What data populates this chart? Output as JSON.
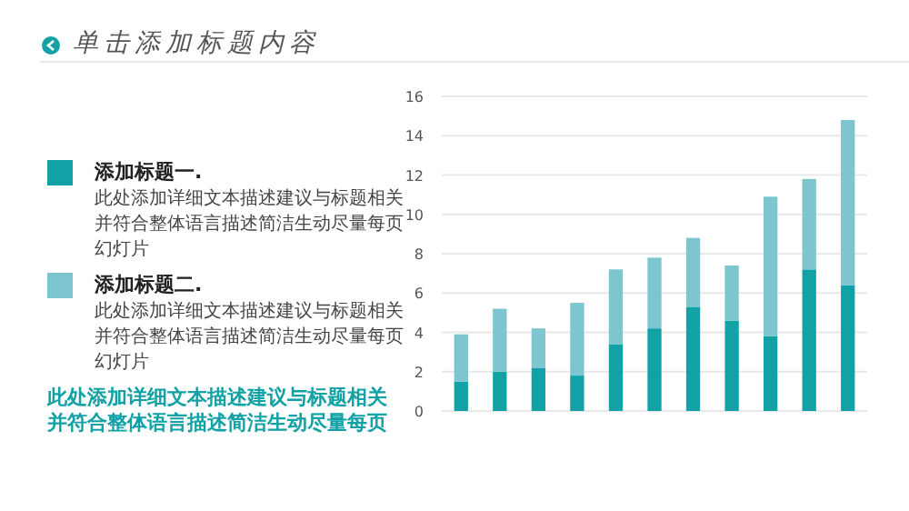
{
  "chart_data": {
    "type": "bar",
    "title": "单击添加标题内容",
    "stacked": true,
    "grid": "y",
    "legend": "left",
    "categories": [
      null,
      null,
      null,
      null,
      null,
      null,
      null,
      null,
      null,
      null,
      null
    ],
    "series": [
      {
        "name": "添加标题一.",
        "color": "#12a2a5",
        "values": [
          1.5,
          2.0,
          2.2,
          1.8,
          3.4,
          4.2,
          5.3,
          4.6,
          3.8,
          7.2,
          6.4
        ]
      },
      {
        "name": "添加标题二.",
        "color": "#7ec6cf",
        "values": [
          2.4,
          3.2,
          2.0,
          3.7,
          3.8,
          3.6,
          3.5,
          2.8,
          7.1,
          4.6,
          8.4
        ]
      }
    ],
    "ylim": [
      0,
      16
    ],
    "yticks": [
      0,
      2,
      4,
      6,
      8,
      10,
      12,
      14,
      16
    ],
    "annotations": [
      "此处添加详细文本描述建议与标题相关并符合整体语言描述简洁生动尽量每页幻灯片",
      "此处添加详细文本描述建议与标题相关并符合整体语言描述简洁生动尽量每页幻灯片",
      "此处添加详细文本描述建议与标题相关并符合整体语言描述简洁生动尽量每页"
    ]
  }
}
